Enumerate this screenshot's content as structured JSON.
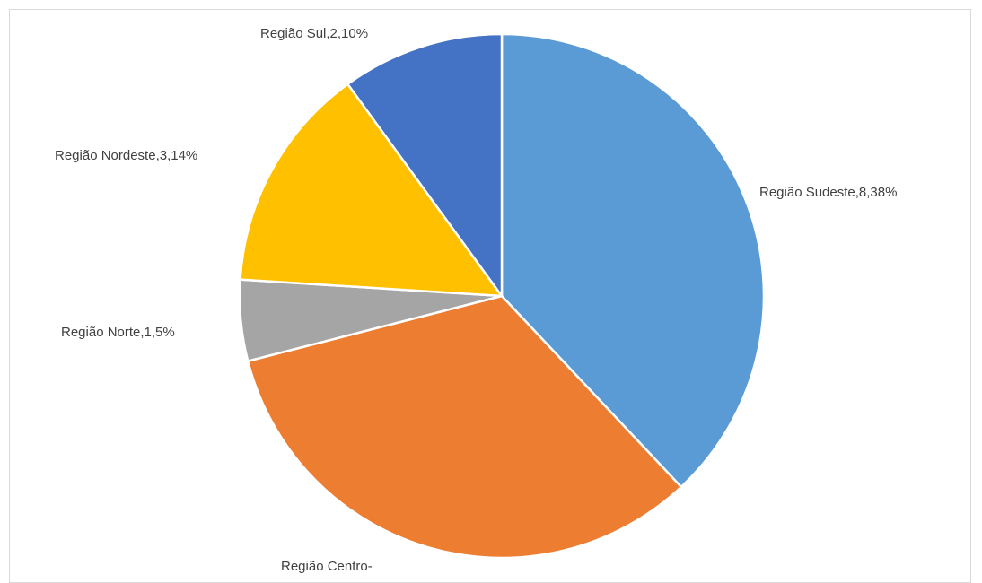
{
  "chart_data": {
    "type": "pie",
    "title": "",
    "slices": [
      {
        "label": "Região Sudeste,8,38%",
        "category": "Região Sudeste",
        "count": 8,
        "percent": 38,
        "color": "#5b9bd5"
      },
      {
        "label": "Região Centro-",
        "category": "Região Centro-",
        "percent": 33,
        "color": "#ed7d31"
      },
      {
        "label": "Região Norte,1,5%",
        "category": "Região Norte",
        "count": 1,
        "percent": 5,
        "color": "#a5a5a5"
      },
      {
        "label": "Região Nordeste,3,14%",
        "category": "Região Nordeste",
        "count": 3,
        "percent": 14,
        "color": "#ffc000"
      },
      {
        "label": "Região Sul,2,10%",
        "category": "Região Sul",
        "count": 2,
        "percent": 10,
        "color": "#4472c4"
      }
    ]
  }
}
